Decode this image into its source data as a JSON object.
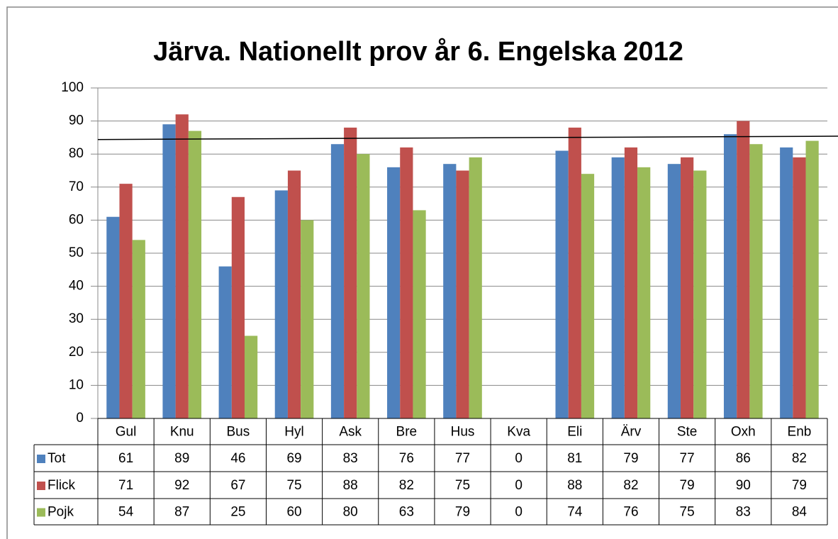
{
  "chart_data": {
    "type": "bar",
    "title": "Järva. Nationellt prov år 6. Engelska 2012",
    "categories": [
      "Gul",
      "Knu",
      "Bus",
      "Hyl",
      "Ask",
      "Bre",
      "Hus",
      "Kva",
      "Eli",
      "Ärv",
      "Ste",
      "Oxh",
      "Enb"
    ],
    "series": [
      {
        "name": "Tot",
        "color": "#4f81bd",
        "values": [
          61,
          89,
          46,
          69,
          83,
          76,
          77,
          0,
          81,
          79,
          77,
          86,
          82
        ]
      },
      {
        "name": "Flick",
        "color": "#c0504d",
        "values": [
          71,
          92,
          67,
          75,
          88,
          82,
          75,
          0,
          88,
          82,
          79,
          90,
          79
        ]
      },
      {
        "name": "Pojk",
        "color": "#9bbb59",
        "values": [
          54,
          87,
          25,
          60,
          80,
          63,
          79,
          0,
          74,
          76,
          75,
          83,
          84
        ]
      }
    ],
    "ylim": [
      0,
      100
    ],
    "yticks": [
      0,
      10,
      20,
      30,
      40,
      50,
      60,
      70,
      80,
      90,
      100
    ],
    "grid": true,
    "data_table": true,
    "reference_line": [
      84.4,
      85.4
    ]
  }
}
